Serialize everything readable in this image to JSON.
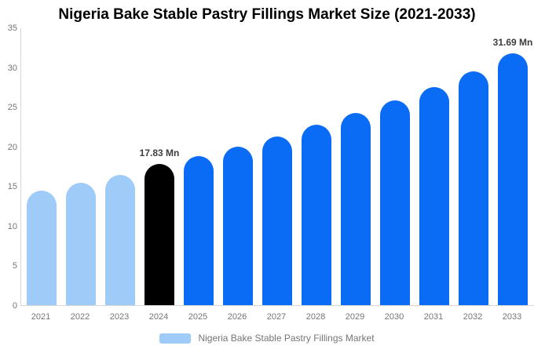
{
  "title": "Nigeria Bake Stable Pastry Fillings Market Size (2021-2033)",
  "legend": {
    "label": "Nigeria Bake Stable Pastry Fillings Market"
  },
  "chart_data": {
    "type": "bar",
    "title": "Nigeria Bake Stable Pastry Fillings Market Size (2021-2033)",
    "unit": "Mn",
    "categories": [
      "2021",
      "2022",
      "2023",
      "2024",
      "2025",
      "2026",
      "2027",
      "2028",
      "2029",
      "2030",
      "2031",
      "2032",
      "2033"
    ],
    "values": [
      14.4,
      15.4,
      16.4,
      17.83,
      18.75,
      20.0,
      21.3,
      22.7,
      24.2,
      25.8,
      27.5,
      29.5,
      31.69
    ],
    "bar_roles": [
      "history",
      "history",
      "history",
      "highlight",
      "forecast",
      "forecast",
      "forecast",
      "forecast",
      "forecast",
      "forecast",
      "forecast",
      "forecast",
      "forecast"
    ],
    "colors": {
      "history": "#9ECBF8",
      "highlight": "#000000",
      "forecast": "#0A6CF5"
    },
    "annotations": [
      {
        "index": 3,
        "label": "17.83 Mn"
      },
      {
        "index": 12,
        "label": "31.69 Mn"
      }
    ],
    "y_ticks": [
      0,
      5,
      10,
      15,
      20,
      25,
      30,
      35
    ],
    "ylim": [
      0,
      35
    ],
    "grid": false,
    "legend_position": "bottom",
    "legend_entries": [
      "Nigeria Bake Stable Pastry Fillings Market"
    ]
  }
}
